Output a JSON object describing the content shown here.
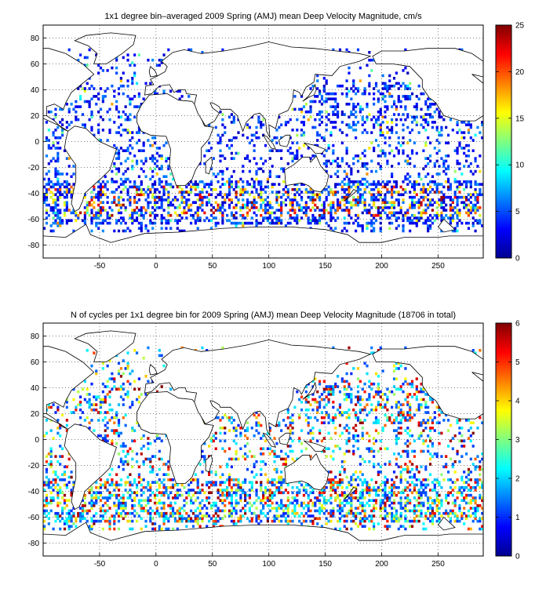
{
  "chart_data": [
    {
      "type": "heatmap",
      "title": "1x1 degree bin–averaged 2009 Spring (AMJ) mean Deep Velocity Magnitude, cm/s",
      "x_ticks": [
        "-50",
        "0",
        "50",
        "100",
        "150",
        "200",
        "250"
      ],
      "y_ticks": [
        "80",
        "60",
        "40",
        "20",
        "0",
        "-20",
        "-40",
        "-60",
        "-80"
      ],
      "xlim": [
        -100,
        290
      ],
      "ylim": [
        -90,
        90
      ],
      "grid": true,
      "colorbar": {
        "min": 0,
        "max": 25,
        "ticks": [
          "25",
          "20",
          "15",
          "10",
          "5",
          "0"
        ]
      },
      "distribution_note_values": {
        "typical": 3,
        "high_southern_ocean": 18
      }
    },
    {
      "type": "heatmap",
      "title": "N of cycles per 1x1 degree bin for 2009 Spring (AMJ) mean Deep Velocity Magnitude (18706 in total)",
      "x_ticks": [
        "-50",
        "0",
        "50",
        "100",
        "150",
        "200",
        "250"
      ],
      "y_ticks": [
        "80",
        "60",
        "40",
        "20",
        "0",
        "-20",
        "-40",
        "-60",
        "-80"
      ],
      "xlim": [
        -100,
        290
      ],
      "ylim": [
        -90,
        90
      ],
      "grid": true,
      "colorbar": {
        "min": 0,
        "max": 6,
        "ticks": [
          "6",
          "5",
          "4",
          "3",
          "2",
          "1",
          "0"
        ]
      },
      "total_cycles": 18706
    }
  ],
  "colors": {
    "jet": [
      "#00008f",
      "#0000ff",
      "#0080ff",
      "#00ffff",
      "#80ff80",
      "#ffff00",
      "#ff8000",
      "#ff0000",
      "#800000"
    ],
    "land_outline": "#000000"
  }
}
